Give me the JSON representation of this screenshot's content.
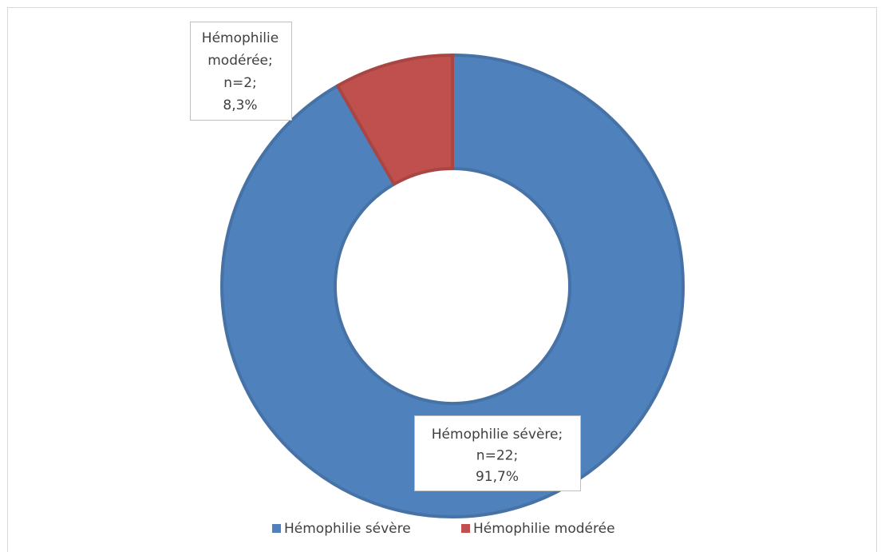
{
  "chart_data": {
    "type": "donut",
    "categories": [
      "Hémophilie sévère",
      "Hémophilie modérée"
    ],
    "values": [
      91.7,
      8.3
    ],
    "value_labels": [
      [
        "Hémophilie sévère;",
        "n=22;",
        "91,7%"
      ],
      [
        "Hémophilie",
        "modérée;",
        "n=2;",
        "8,3%"
      ]
    ],
    "colors": [
      "#4f81bd",
      "#c0504d"
    ],
    "legend": "bottom"
  }
}
